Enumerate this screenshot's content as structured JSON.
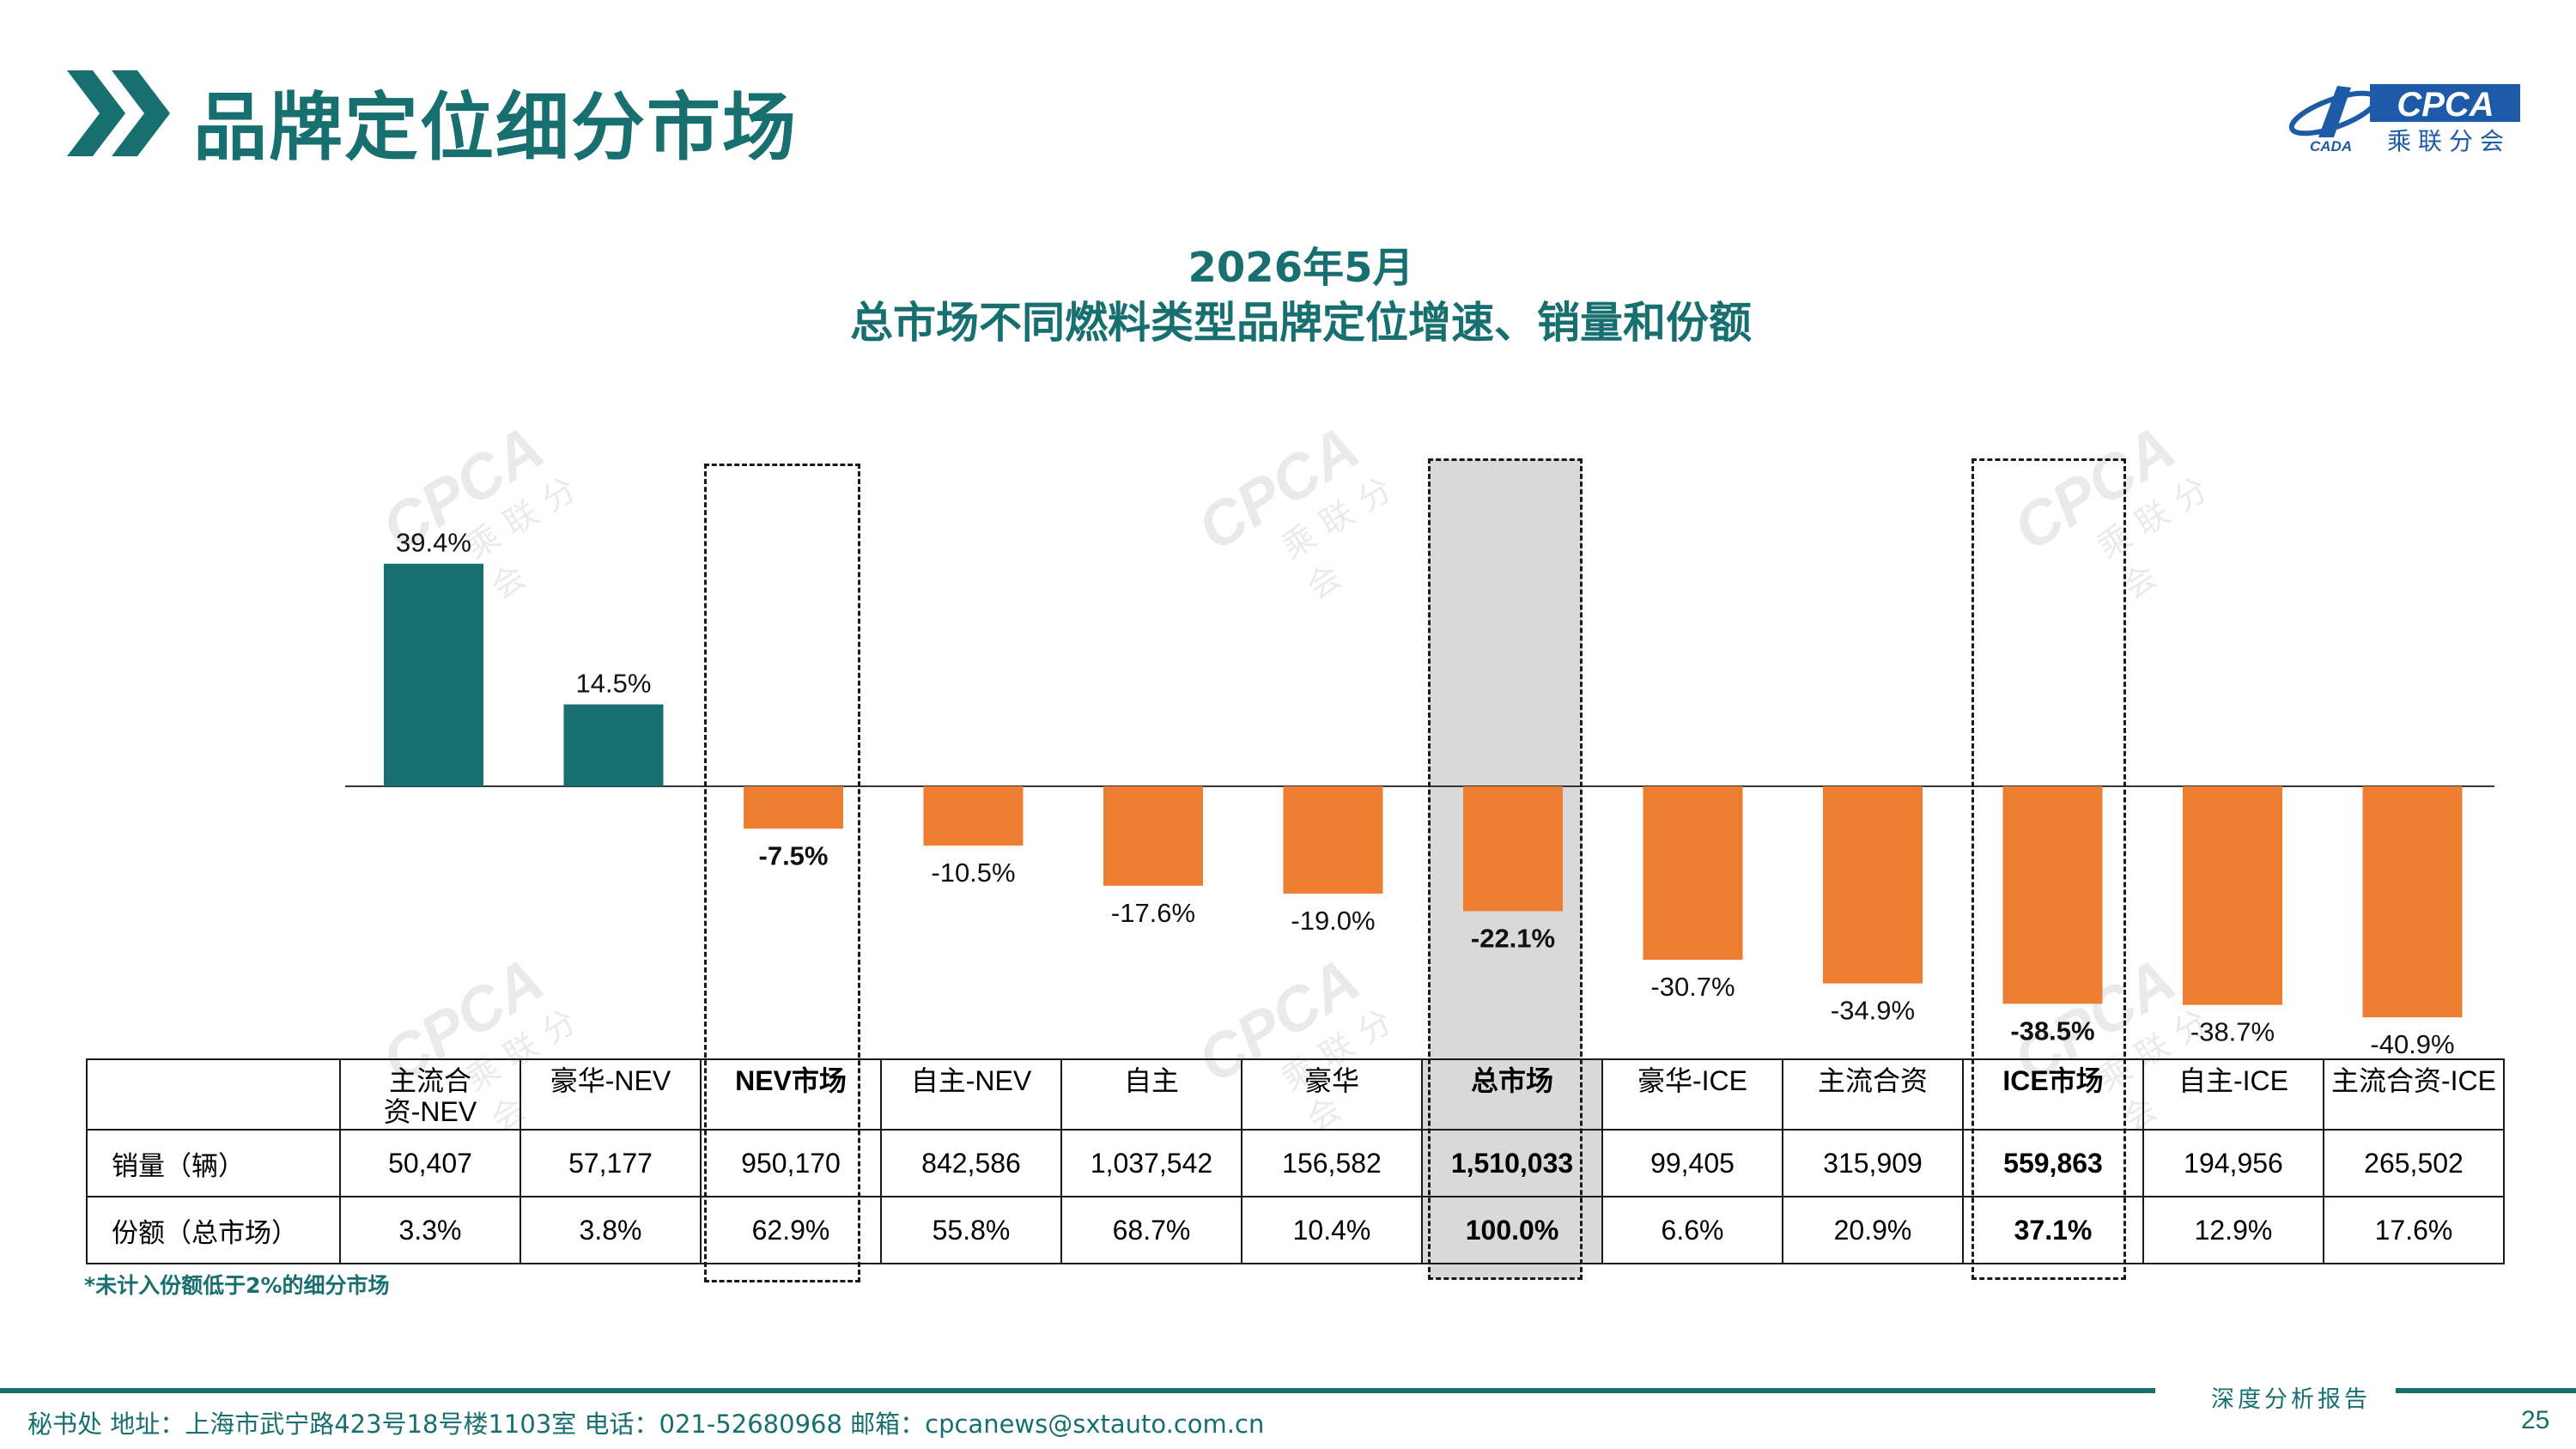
{
  "header": {
    "title": "品牌定位细分市场",
    "logo_text": "CPCA",
    "logo_subtext": "乘联分会",
    "logo_mark_text": "CADA"
  },
  "chart_data": {
    "type": "bar",
    "title": "2026年5月",
    "subtitle": "总市场不同燃料类型品牌定位增速、销量和份额",
    "categories": [
      "主流合资-NEV",
      "豪华-NEV",
      "NEV市场",
      "自主-NEV",
      "自主",
      "豪华",
      "总市场",
      "豪华-ICE",
      "主流合资",
      "ICE市场",
      "自主-ICE",
      "主流合资-ICE"
    ],
    "series": [
      {
        "values": [
          39.4,
          14.5,
          -7.5,
          -10.5,
          -17.6,
          -19.0,
          -22.1,
          -30.7,
          -34.9,
          -38.5,
          -38.7,
          -40.9
        ]
      }
    ],
    "value_labels": [
      "39.4%",
      "14.5%",
      "-7.5%",
      "-10.5%",
      "-17.6%",
      "-19.0%",
      "-22.1%",
      "-30.7%",
      "-34.9%",
      "-38.5%",
      "-38.7%",
      "-40.9%"
    ],
    "bold_labels": [
      false,
      false,
      true,
      false,
      false,
      false,
      true,
      false,
      false,
      true,
      false,
      false
    ],
    "highlighted_categories": [
      "NEV市场",
      "总市场",
      "ICE市场"
    ],
    "positive_color": "#17706F",
    "negative_color": "#ED7D31",
    "ylim": [
      -45,
      45
    ],
    "xlabel": "",
    "ylabel": "",
    "grid": false,
    "legend": "none"
  },
  "table": {
    "header_labels": [
      "主流合资-NEV",
      "豪华-NEV",
      "NEV市场",
      "自主-NEV",
      "自主",
      "豪华",
      "总市场",
      "豪华-ICE",
      "主流合资",
      "ICE市场",
      "自主-ICE",
      "主流合资-ICE"
    ],
    "header_label_lines": [
      [
        "主流合",
        "资-NEV"
      ],
      [
        "豪华-NEV"
      ],
      [
        "NEV市场"
      ],
      [
        "自主-NEV"
      ],
      [
        "自主"
      ],
      [
        "豪华"
      ],
      [
        "总市场"
      ],
      [
        "豪华-ICE"
      ],
      [
        "主流合资"
      ],
      [
        "ICE市场"
      ],
      [
        "自主-ICE"
      ],
      [
        "主流合资-ICE"
      ]
    ],
    "rows": [
      {
        "label": "销量（辆）",
        "values": [
          "50,407",
          "57,177",
          "950,170",
          "842,586",
          "1,037,542",
          "156,582",
          "1,510,033",
          "99,405",
          "315,909",
          "559,863",
          "194,956",
          "265,502"
        ]
      },
      {
        "label": "份额（总市场）",
        "values": [
          "3.3%",
          "3.8%",
          "62.9%",
          "55.8%",
          "68.7%",
          "10.4%",
          "100.0%",
          "6.6%",
          "20.9%",
          "37.1%",
          "12.9%",
          "17.6%"
        ]
      }
    ]
  },
  "footnote": "*未计入份额低于2%的细分市场",
  "watermark": {
    "text": "CPCA",
    "subtext": "乘联分会"
  },
  "footer": {
    "address": "秘书处   地址：上海市武宁路423号18号楼1103室   电话：021-52680968   邮箱：cpcanews@sxtauto.com.cn",
    "tag": "深度分析报告",
    "page_number": "25"
  }
}
